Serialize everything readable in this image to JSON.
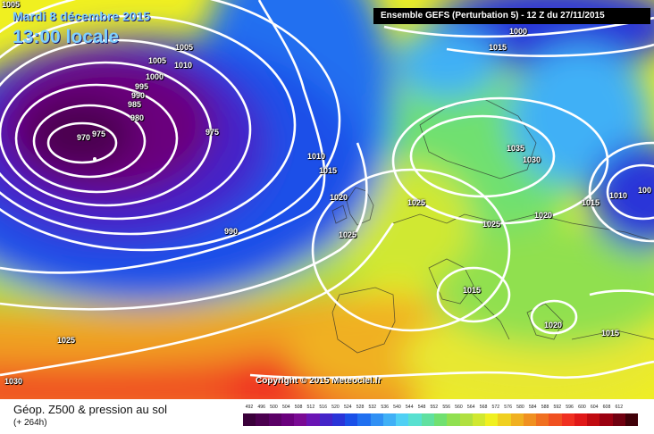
{
  "header": {
    "date": "Mardi 8 décembre 2015",
    "time": "13:00 locale",
    "model": "Ensemble GEFS  (Perturbation 5)  -  12 Z du 27/11/2015",
    "copyright": "Copyright © 2015 Meteociel.fr"
  },
  "footer": {
    "field": "Géop. Z500 & pression au sol",
    "lead": "(+ 264h)"
  },
  "isobar_labels": [
    "1005",
    "1015",
    "1005",
    "1010",
    "1000",
    "995",
    "990",
    "985",
    "980",
    "970",
    "975",
    "975",
    "1010",
    "1015",
    "1020",
    "1025",
    "990",
    "1025",
    "1035",
    "1030",
    "1025",
    "1020",
    "1015",
    "1010",
    "100",
    "1015",
    "1020",
    "1015",
    "1025",
    "1030",
    "1000",
    "1005"
  ],
  "legend": {
    "values": [
      "492",
      "496",
      "500",
      "504",
      "508",
      "512",
      "516",
      "520",
      "524",
      "528",
      "532",
      "536",
      "540",
      "544",
      "548",
      "552",
      "556",
      "560",
      "564",
      "568",
      "572",
      "576",
      "580",
      "584",
      "588",
      "592",
      "596",
      "600",
      "604",
      "608",
      "612"
    ],
    "colors": [
      "#3a003a",
      "#4b004f",
      "#5a0066",
      "#6a007d",
      "#7a0a94",
      "#6a14b4",
      "#4424c8",
      "#2a34d8",
      "#1a50e8",
      "#2070f0",
      "#3090f4",
      "#40b0f6",
      "#50d0f4",
      "#58e0d0",
      "#60e0a0",
      "#70e070",
      "#90e050",
      "#b0e040",
      "#d0e830",
      "#f0f020",
      "#f0d020",
      "#f0b020",
      "#f09020",
      "#f07020",
      "#f05020",
      "#f03020",
      "#e01818",
      "#c00a10",
      "#9a0010",
      "#700010",
      "#400008"
    ]
  }
}
